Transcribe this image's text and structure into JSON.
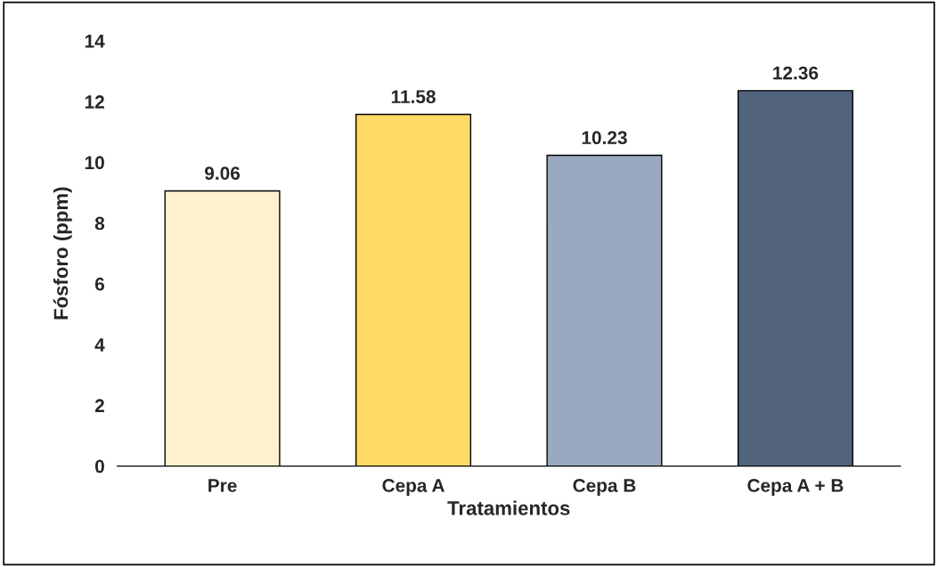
{
  "chart_data": {
    "type": "bar",
    "xlabel": "Tratamientos",
    "ylabel": "Fósforo (ppm)",
    "categories": [
      "Pre",
      "Cepa A",
      "Cepa B",
      "Cepa A + B"
    ],
    "values": [
      9.06,
      11.58,
      10.23,
      12.36
    ],
    "colors": [
      "#fff2cc",
      "#ffd966",
      "#9aa9c0",
      "#51637d"
    ],
    "ylim": [
      0,
      14
    ],
    "yticks": [
      0,
      2,
      4,
      6,
      8,
      10,
      12,
      14
    ],
    "grid": false,
    "data_labels": true,
    "legend": false
  }
}
